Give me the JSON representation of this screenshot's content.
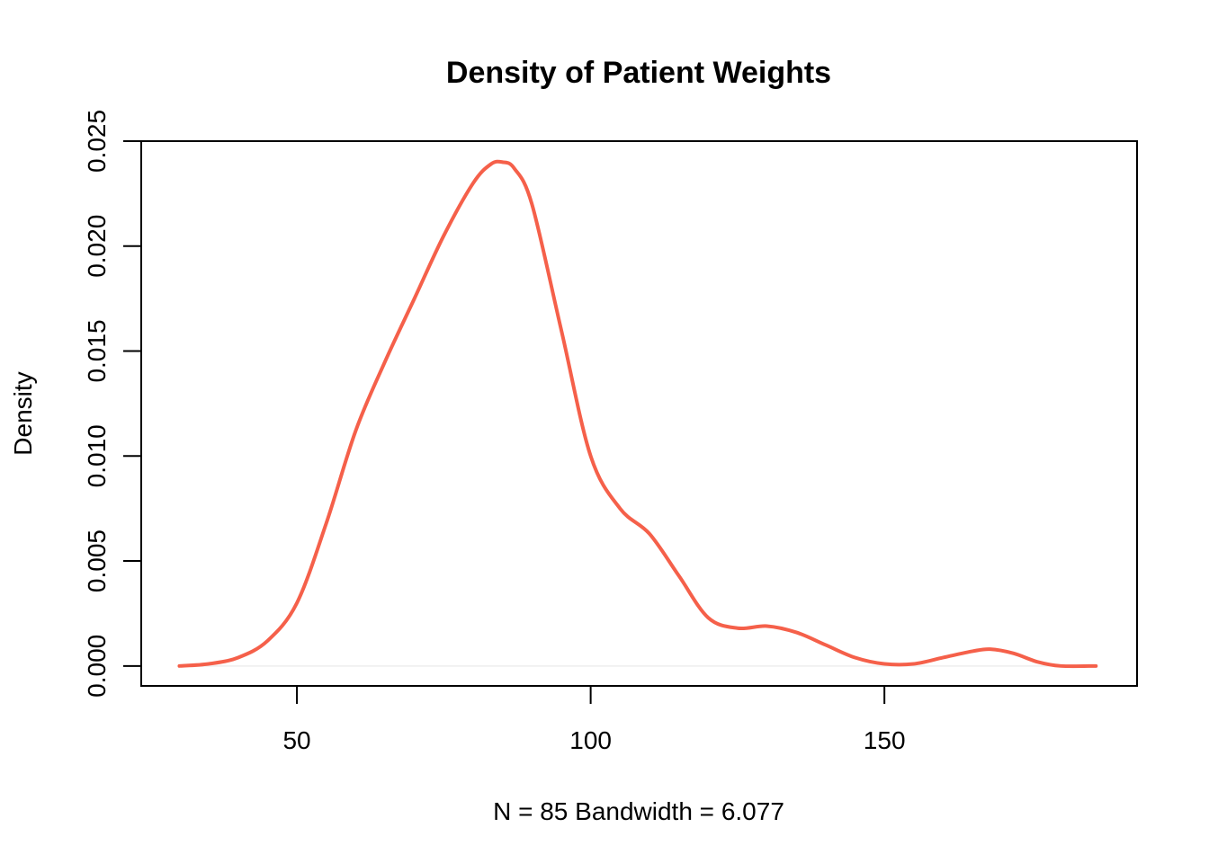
{
  "chart_data": {
    "type": "line",
    "title": "Density of Patient Weights",
    "xlabel": "N = 85   Bandwidth = 6.077",
    "ylabel": "Density",
    "xlim": [
      23.5,
      193
    ],
    "ylim": [
      -0.00095,
      0.025
    ],
    "x_ticks": [
      50,
      100,
      150
    ],
    "y_ticks": [
      0.0,
      0.005,
      0.01,
      0.015,
      0.02,
      0.025
    ],
    "y_tick_labels": [
      "0.000",
      "0.005",
      "0.010",
      "0.015",
      "0.020",
      "0.025"
    ],
    "x_tick_labels": [
      "50",
      "100",
      "150"
    ],
    "grid": false,
    "line_color": "#F5604A",
    "series": [
      {
        "x": [
          30,
          35,
          40,
          45,
          50,
          55,
          60,
          65,
          70,
          75,
          80,
          83,
          85,
          87,
          90,
          95,
          100,
          105,
          110,
          115,
          120,
          125,
          130,
          135,
          140,
          145,
          150,
          155,
          160,
          165,
          168,
          172,
          176,
          180,
          186
        ],
        "values": [
          0.0,
          0.0001,
          0.0004,
          0.0012,
          0.003,
          0.0068,
          0.0112,
          0.0145,
          0.0175,
          0.0205,
          0.023,
          0.0239,
          0.024,
          0.0237,
          0.022,
          0.016,
          0.01,
          0.0075,
          0.0063,
          0.0043,
          0.0023,
          0.0018,
          0.0019,
          0.0016,
          0.001,
          0.0004,
          0.0001,
          0.0001,
          0.0004,
          0.0007,
          0.0008,
          0.0006,
          0.0002,
          0.0,
          0.0
        ]
      }
    ]
  }
}
